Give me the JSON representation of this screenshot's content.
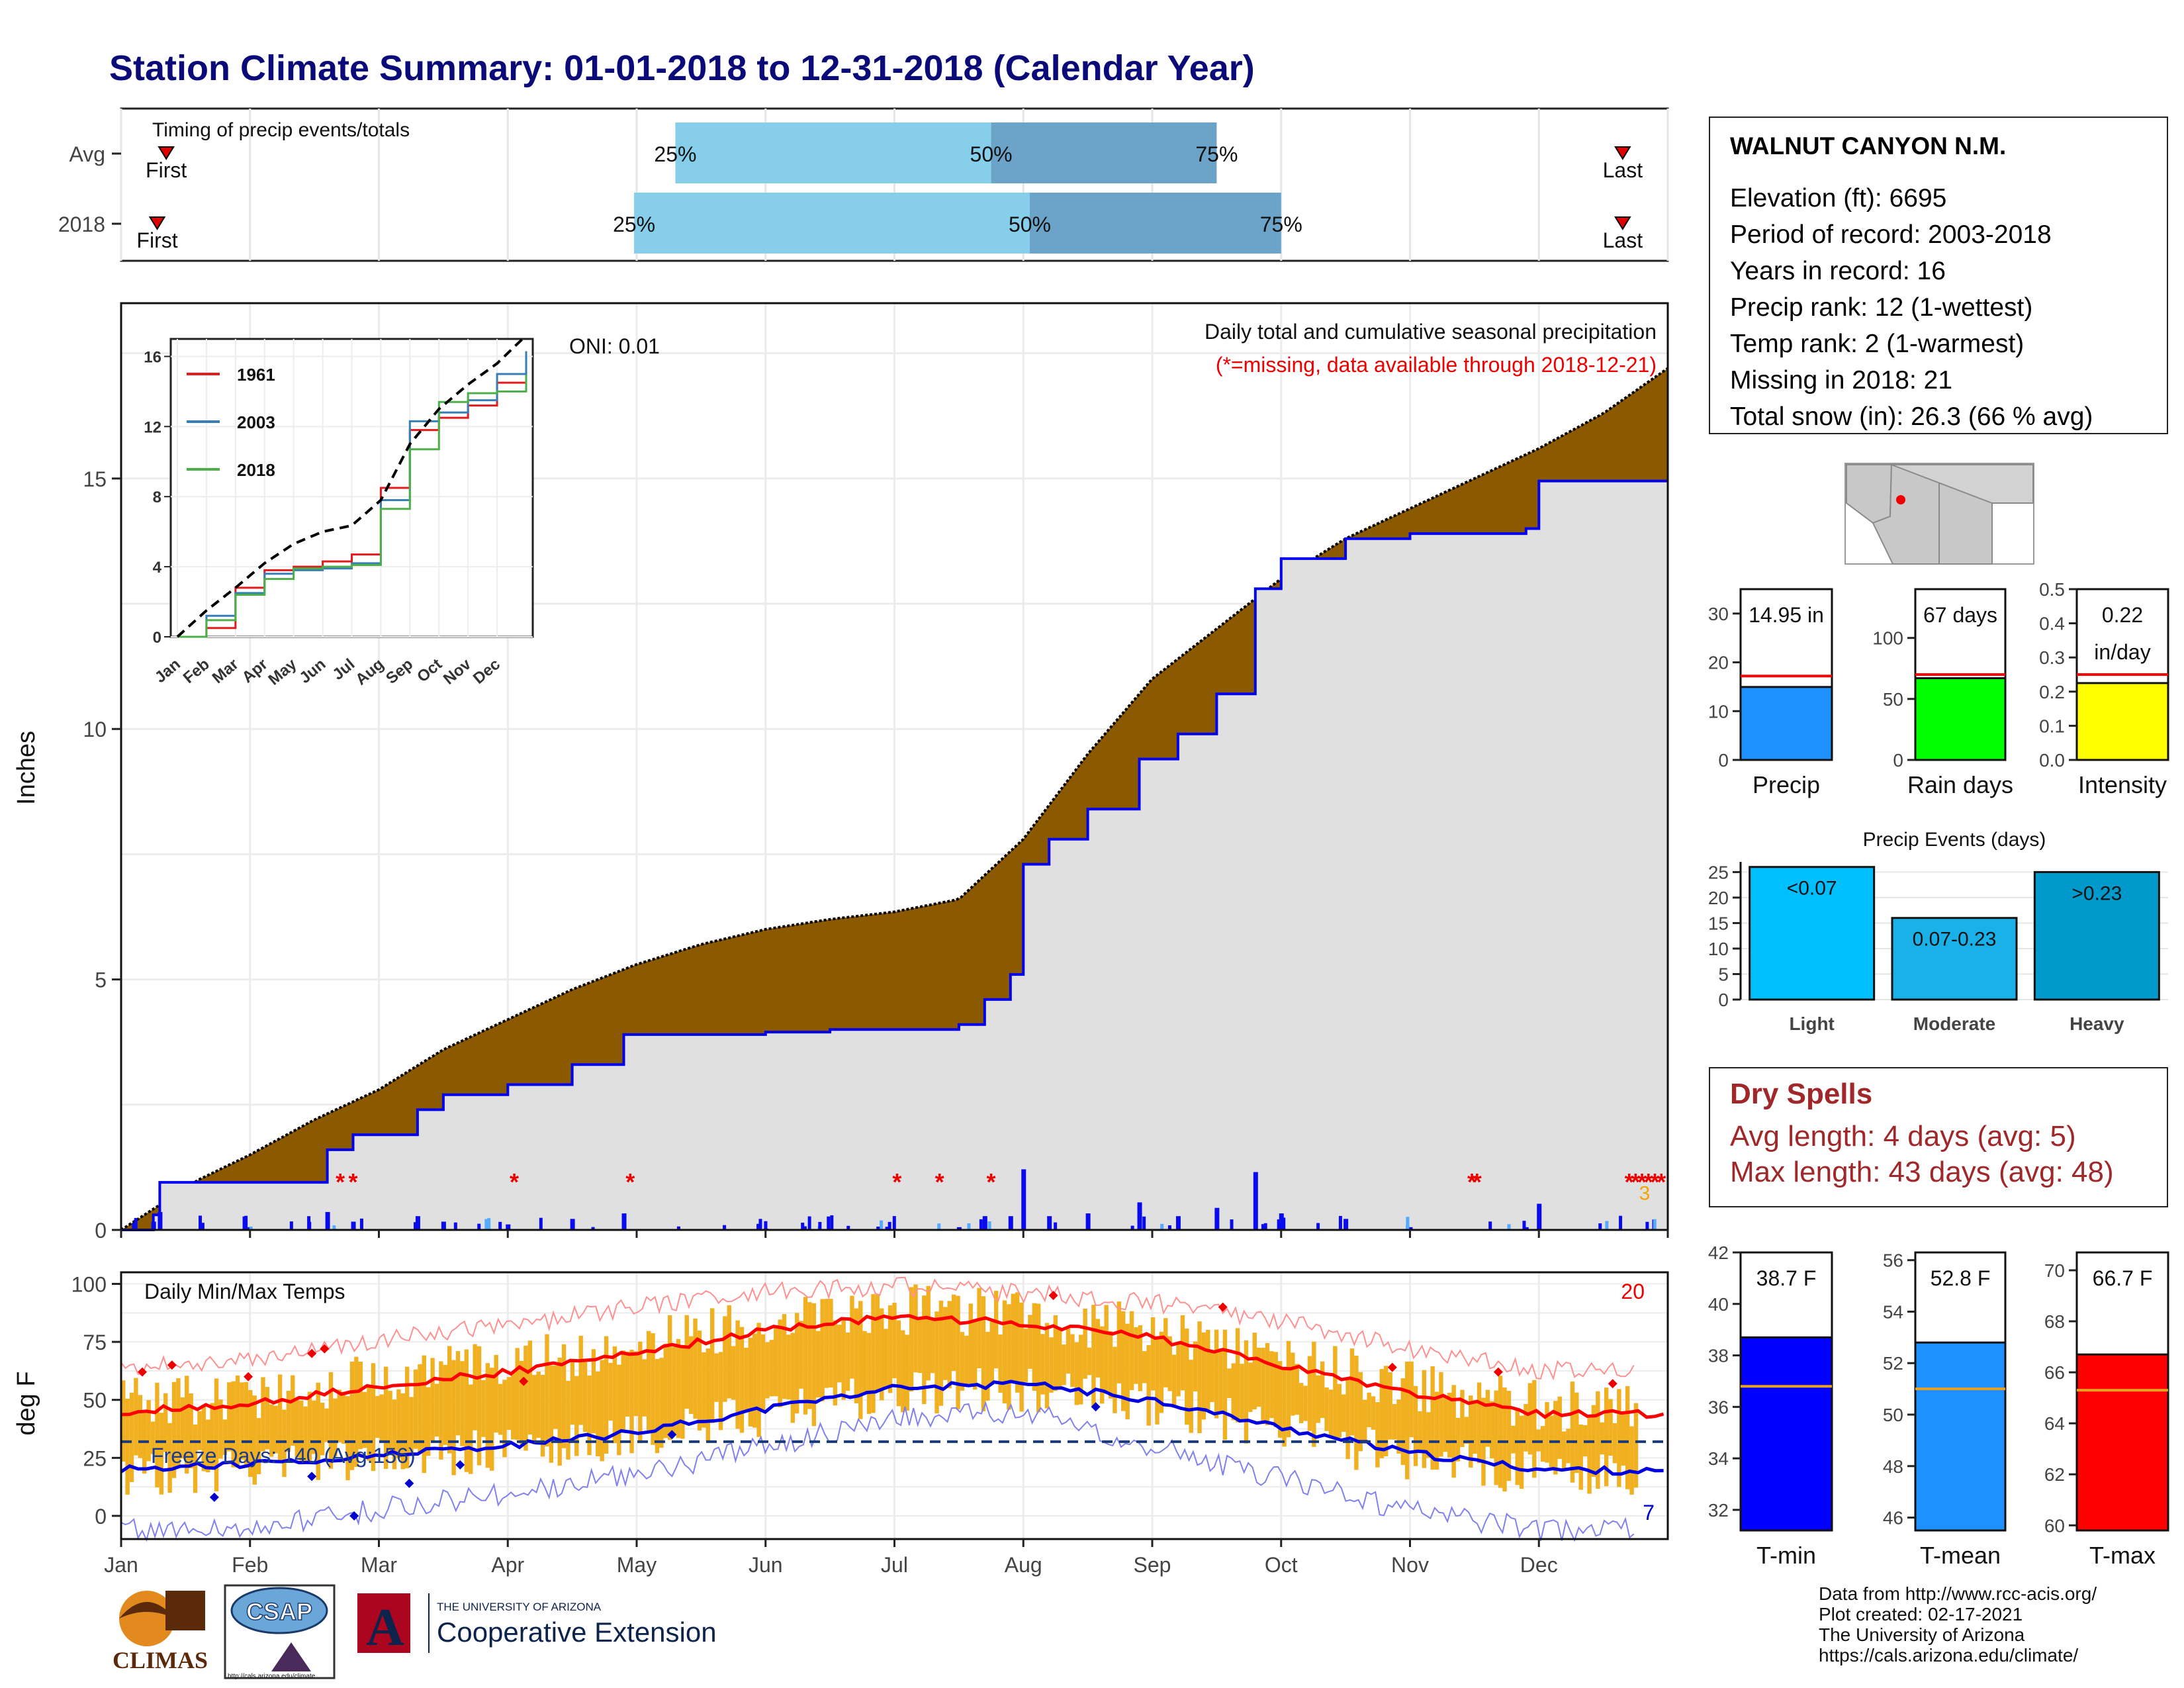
{
  "title": "Station Climate Summary: 01-01-2018 to 12-31-2018 (Calendar Year)",
  "station": {
    "name": "WALNUT CANYON N.M.",
    "lines": [
      "Elevation (ft): 6695",
      "Period of record: 2003-2018",
      "Years in record: 16",
      "Precip rank: 12 (1-wettest)",
      "Temp rank: 2 (1-warmest)",
      "Missing in 2018: 21",
      "Total snow (in): 26.3 (66 % avg)"
    ]
  },
  "dry_spells": {
    "title": "Dry Spells",
    "lines": [
      "Avg length: 4 days (avg: 5)",
      "Max length: 43 days (avg: 48)"
    ]
  },
  "credits": [
    "Data from http://www.rcc-acis.org/",
    "Plot created: 02-17-2021",
    "The University of Arizona",
    "https://cals.arizona.edu/climate/"
  ],
  "logos": {
    "climas": "CLIMAS",
    "csap": "CSAP",
    "csap_url": "http://cals.arizona.edu/climate",
    "ua_small": "THE UNIVERSITY OF ARIZONA",
    "ua_large": "Cooperative Extension"
  },
  "colors": {
    "title": "#0a0a78",
    "brown": "#8B5A00",
    "gray_fill": "#e0e0e0",
    "blue_line": "#0000ee",
    "light_blue": "#87ceeb",
    "steel_blue": "#6ca3c9",
    "max_temp": "#ff0000",
    "min_temp": "#0000e0",
    "range_bars": "#f0b020",
    "dry_text": "#a0282a"
  },
  "chart_data": [
    {
      "id": "timing",
      "type": "bar",
      "title": "Timing of precip events/totals",
      "categories": [
        "Avg",
        "2018"
      ],
      "x_range_month_frac": [
        0,
        12
      ],
      "series": [
        {
          "name": "Avg",
          "first": 0.35,
          "last": 11.65,
          "q25": 4.3,
          "q50": 6.75,
          "q75": 8.5,
          "labels": [
            "First",
            "25%",
            "50%",
            "75%",
            "Last"
          ]
        },
        {
          "name": "2018",
          "first": 0.28,
          "last": 11.65,
          "q25": 3.98,
          "q50": 7.05,
          "q75": 9.0,
          "labels": [
            "First",
            "25%",
            "50%",
            "75%",
            "Last"
          ]
        }
      ]
    },
    {
      "id": "cumulative_precip",
      "type": "area",
      "title": "Daily total and cumulative seasonal precipitation",
      "subtitle": "(*=missing, data available through 2018-12-21)",
      "annotation": "ONI: 0.01",
      "ylabel": "Inches",
      "ylim": [
        0,
        18.5
      ],
      "yticks": [
        0,
        5,
        10,
        15
      ],
      "xticks": [
        "Jan",
        "Feb",
        "Mar",
        "Apr",
        "May",
        "Jun",
        "Jul",
        "Aug",
        "Sep",
        "Oct",
        "Nov",
        "Dec"
      ],
      "avg_cumulative": {
        "x_month_frac": [
          0,
          0.3,
          0.6,
          1.0,
          1.5,
          2.0,
          2.5,
          3.0,
          3.5,
          4.0,
          4.5,
          5.0,
          5.5,
          6.0,
          6.5,
          7.0,
          7.5,
          8.0,
          8.5,
          9.0,
          9.5,
          10.0,
          10.5,
          11.0,
          11.5,
          12.0
        ],
        "y": [
          0,
          0.5,
          1.0,
          1.5,
          2.2,
          2.8,
          3.6,
          4.2,
          4.8,
          5.3,
          5.7,
          6.0,
          6.2,
          6.35,
          6.6,
          7.8,
          9.5,
          11.0,
          12.0,
          13.0,
          13.8,
          14.4,
          15.0,
          15.6,
          16.3,
          17.2
        ]
      },
      "obs_2018_cumulative": {
        "x_month_frac": [
          0,
          0.25,
          0.3,
          1.35,
          1.6,
          1.8,
          2.3,
          2.5,
          3.0,
          3.5,
          3.9,
          4.5,
          5.0,
          5.5,
          6.0,
          6.5,
          6.7,
          6.9,
          7.0,
          7.2,
          7.5,
          7.9,
          8.2,
          8.5,
          8.8,
          9.0,
          9.5,
          10.0,
          10.5,
          10.9,
          11.0,
          12.0
        ],
        "y": [
          0,
          0.3,
          0.95,
          0.95,
          1.6,
          1.9,
          2.4,
          2.7,
          2.9,
          3.3,
          3.9,
          3.9,
          3.95,
          4.0,
          4.0,
          4.1,
          4.6,
          5.1,
          7.3,
          7.8,
          8.4,
          9.4,
          9.9,
          10.7,
          12.8,
          13.4,
          13.8,
          13.9,
          13.9,
          14.0,
          14.95,
          14.95
        ]
      },
      "missing_marker_months": [
        1.7,
        1.8,
        3.05,
        3.95,
        6.02,
        6.35,
        6.75,
        10.48,
        10.52,
        11.7,
        11.75,
        11.8,
        11.85,
        11.9,
        11.95
      ],
      "missing_count_label": "3",
      "inset": {
        "type": "line",
        "xticks": [
          "Jan",
          "Feb",
          "Mar",
          "Apr",
          "May",
          "Jun",
          "Jul",
          "Aug",
          "Sep",
          "Oct",
          "Nov",
          "Dec"
        ],
        "yticks": [
          0,
          4,
          8,
          12,
          16
        ],
        "ylim": [
          0,
          17
        ],
        "series": [
          {
            "name": "1961",
            "color": "#e41a1c",
            "y": [
              0,
              0.5,
              2.8,
              3.8,
              4.0,
              4.3,
              4.7,
              8.5,
              11.8,
              12.5,
              13.2,
              14.5,
              16.3
            ]
          },
          {
            "name": "2003",
            "color": "#377eb8",
            "y": [
              0,
              1.2,
              2.5,
              3.6,
              3.8,
              3.9,
              4.2,
              7.8,
              12.3,
              12.8,
              13.5,
              15.0,
              16.3
            ]
          },
          {
            "name": "2018",
            "color": "#4daf4a",
            "y": [
              0,
              0.95,
              2.4,
              3.3,
              3.9,
              4.0,
              4.1,
              7.3,
              10.7,
              13.4,
              13.9,
              14.0,
              14.95
            ]
          },
          {
            "name": "",
            "color": "#000000",
            "dashed": true,
            "y": [
              0,
              1.5,
              2.8,
              4.2,
              5.3,
              6.0,
              6.35,
              7.8,
              11.0,
              13.0,
              14.4,
              15.6,
              17.2
            ]
          }
        ]
      }
    },
    {
      "id": "temps",
      "type": "line",
      "title": "Daily Min/Max Temps",
      "ylabel": "deg F",
      "ylim": [
        -10,
        105
      ],
      "yticks": [
        0,
        25,
        50,
        75,
        100
      ],
      "xticks": [
        "Jan",
        "Feb",
        "Mar",
        "Apr",
        "May",
        "Jun",
        "Jul",
        "Aug",
        "Sep",
        "Oct",
        "Nov",
        "Dec"
      ],
      "freeze_label": "Freeze Days: 140 (Avg:156)",
      "freeze_line": 32,
      "record_high_count": "20",
      "record_low_count": "7",
      "avg_max_monthly": [
        45,
        48,
        56,
        62,
        70,
        80,
        86,
        83,
        77,
        65,
        53,
        44,
        44
      ],
      "avg_min_monthly": [
        20,
        22,
        26,
        30,
        36,
        46,
        55,
        57,
        50,
        38,
        27,
        20,
        19
      ],
      "rec_max_monthly": [
        63,
        68,
        76,
        82,
        90,
        97,
        99,
        96,
        92,
        84,
        72,
        63,
        63
      ],
      "rec_min_monthly": [
        -6,
        -5,
        3,
        10,
        18,
        30,
        42,
        45,
        30,
        16,
        2,
        -6,
        -5
      ]
    },
    {
      "id": "precip_total",
      "type": "bar",
      "xlabel": "Precip",
      "label": "14.95 in",
      "value": 14.95,
      "avg": 17.2,
      "ylim": [
        0,
        35
      ],
      "yticks": [
        0,
        10,
        20,
        30
      ],
      "color": "#1e90ff"
    },
    {
      "id": "rain_days",
      "type": "bar",
      "xlabel": "Rain days",
      "label": "67 days",
      "value": 67,
      "avg": 70,
      "ylim": [
        0,
        140
      ],
      "yticks": [
        0,
        50,
        100
      ],
      "color": "#00ff00"
    },
    {
      "id": "intensity",
      "type": "bar",
      "xlabel": "Intensity",
      "label_line1": "0.22",
      "label_line2": "in/day",
      "value": 0.225,
      "avg": 0.25,
      "ylim": [
        0,
        0.5
      ],
      "yticks": [
        0.0,
        0.1,
        0.2,
        0.3,
        0.4,
        0.5
      ],
      "color": "#ffff00"
    },
    {
      "id": "precip_events",
      "type": "bar",
      "title": "Precip Events (days)",
      "categories": [
        "Light",
        "Moderate",
        "Heavy"
      ],
      "bar_labels": [
        "<0.07",
        "0.07-0.23",
        ">0.23"
      ],
      "values": [
        26,
        16,
        25
      ],
      "colors": [
        "#00bfff",
        "#1ab0e8",
        "#0099cc"
      ],
      "ylim": [
        0,
        27
      ],
      "yticks": [
        0,
        5,
        10,
        15,
        20,
        25
      ]
    },
    {
      "id": "tmin",
      "type": "bar",
      "xlabel": "T-min",
      "label": "38.7 F",
      "value": 38.7,
      "avg": 36.8,
      "ylim": [
        31.2,
        42
      ],
      "yticks": [
        32,
        34,
        36,
        38,
        40,
        42
      ],
      "color": "#0000ff"
    },
    {
      "id": "tmean",
      "type": "bar",
      "xlabel": "T-mean",
      "label": "52.8 F",
      "value": 52.8,
      "avg": 51.0,
      "ylim": [
        45.5,
        56.3
      ],
      "yticks": [
        46,
        48,
        50,
        52,
        54,
        56
      ],
      "color": "#1e90ff"
    },
    {
      "id": "tmax",
      "type": "bar",
      "xlabel": "T-max",
      "label": "66.7 F",
      "value": 66.7,
      "avg": 65.3,
      "ylim": [
        59.8,
        70.7
      ],
      "yticks": [
        60,
        62,
        64,
        66,
        68,
        70
      ],
      "color": "#ff0000"
    }
  ]
}
